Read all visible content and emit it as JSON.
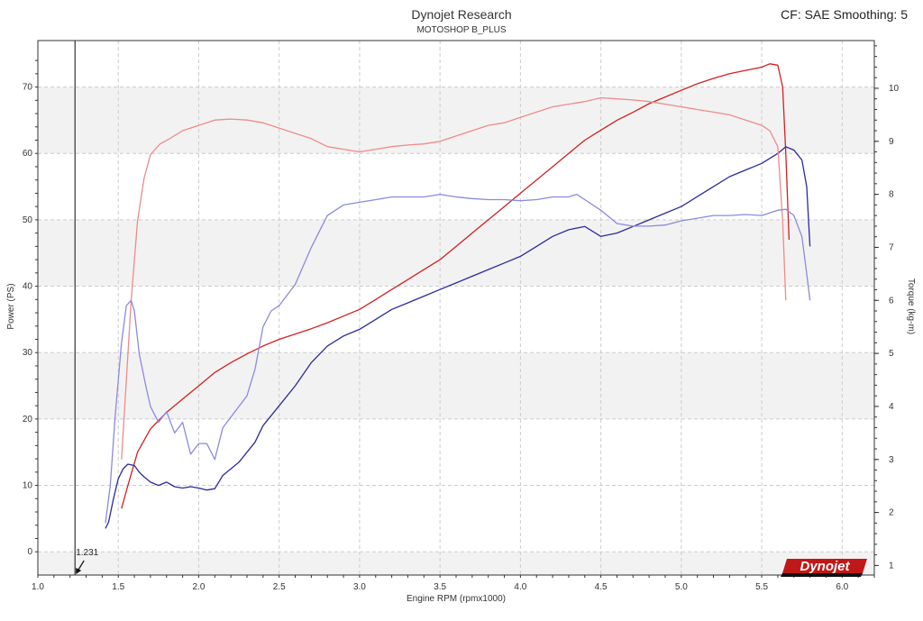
{
  "header": {
    "title": "Dynojet Research",
    "subtitle": "MOTOSHOP B_PLUS",
    "right_text": "CF: SAE Smoothing: 5"
  },
  "cursor": {
    "rpm": 1.231,
    "label": "1.231"
  },
  "logo": {
    "text": "Dynojet",
    "icon": "dynojet-logo"
  },
  "colors": {
    "power_curve": "#d42020",
    "power_curve_light": "#f08a8a",
    "torque_curve": "#2a2aa0",
    "torque_curve_light": "#8a8ae0",
    "band": "#f2f2f2",
    "grid": "#cccccc"
  },
  "chart_data": {
    "type": "line",
    "xlabel": "Engine RPM (rpmx1000)",
    "ylabel": "Power (PS)",
    "y2label": "Torque (kg-m)",
    "xlim": [
      1.0,
      6.2
    ],
    "ylim": [
      -3.5,
      77
    ],
    "y2lim": [
      0.82,
      10.9
    ],
    "x_ticks": [
      "1.0",
      "1.5",
      "2.0",
      "2.5",
      "3.0",
      "3.5",
      "4.0",
      "4.5",
      "5.0",
      "5.5",
      "6.0"
    ],
    "y_ticks": [
      "0",
      "10",
      "20",
      "30",
      "40",
      "50",
      "60",
      "70"
    ],
    "y2_ticks": [
      "1",
      "2",
      "3",
      "4",
      "5",
      "6",
      "7",
      "8",
      "9",
      "10"
    ],
    "grid": true,
    "series": [
      {
        "axis": "power",
        "style": "dark",
        "x": [
          1.52,
          1.56,
          1.62,
          1.7,
          1.8,
          1.9,
          2.0,
          2.1,
          2.2,
          2.3,
          2.4,
          2.5,
          2.6,
          2.7,
          2.8,
          2.9,
          3.0,
          3.1,
          3.2,
          3.3,
          3.4,
          3.5,
          3.6,
          3.7,
          3.8,
          3.9,
          4.0,
          4.1,
          4.2,
          4.3,
          4.4,
          4.5,
          4.6,
          4.7,
          4.8,
          4.9,
          5.0,
          5.1,
          5.2,
          5.3,
          5.4,
          5.5,
          5.55,
          5.6,
          5.63,
          5.65,
          5.67
        ],
        "y": [
          6.5,
          10,
          15,
          18.5,
          21,
          23,
          25,
          27,
          28.5,
          29.8,
          31,
          32,
          32.8,
          33.6,
          34.5,
          35.5,
          36.5,
          38,
          39.5,
          41,
          42.5,
          44,
          46,
          48,
          50,
          52,
          54,
          56,
          58,
          60,
          62,
          63.5,
          65,
          66.2,
          67.5,
          68.5,
          69.5,
          70.5,
          71.3,
          72,
          72.5,
          73,
          73.5,
          73.3,
          70,
          60,
          47
        ]
      },
      {
        "axis": "power",
        "style": "dark",
        "x": [
          1.42,
          1.44,
          1.47,
          1.5,
          1.53,
          1.56,
          1.6,
          1.63,
          1.66,
          1.7,
          1.75,
          1.8,
          1.85,
          1.9,
          1.95,
          2.0,
          2.05,
          2.1,
          2.15,
          2.2,
          2.25,
          2.3,
          2.35,
          2.4,
          2.5,
          2.6,
          2.7,
          2.8,
          2.9,
          3.0,
          3.1,
          3.2,
          3.3,
          3.4,
          3.5,
          3.6,
          3.7,
          3.8,
          3.9,
          4.0,
          4.1,
          4.2,
          4.3,
          4.4,
          4.5,
          4.6,
          4.7,
          4.8,
          4.9,
          5.0,
          5.1,
          5.2,
          5.3,
          5.4,
          5.5,
          5.6,
          5.65,
          5.7,
          5.75,
          5.78,
          5.8
        ],
        "y": [
          3.5,
          4.5,
          8,
          11,
          12.5,
          13.2,
          13,
          12,
          11.3,
          10.5,
          10,
          10.5,
          9.8,
          9.6,
          9.8,
          9.6,
          9.3,
          9.5,
          11.5,
          12.5,
          13.5,
          15,
          16.5,
          19,
          22,
          25,
          28.5,
          31,
          32.5,
          33.5,
          35,
          36.5,
          37.5,
          38.5,
          39.5,
          40.5,
          41.5,
          42.5,
          43.5,
          44.5,
          46,
          47.5,
          48.5,
          49,
          47.5,
          48,
          49,
          50,
          51,
          52,
          53.5,
          55,
          56.5,
          57.5,
          58.5,
          60,
          61,
          60.5,
          59,
          55,
          46
        ]
      },
      {
        "axis": "torque",
        "style": "light",
        "x": [
          1.52,
          1.55,
          1.58,
          1.62,
          1.66,
          1.7,
          1.76,
          1.82,
          1.9,
          2.0,
          2.1,
          2.2,
          2.3,
          2.4,
          2.5,
          2.6,
          2.7,
          2.8,
          2.9,
          3.0,
          3.1,
          3.2,
          3.3,
          3.4,
          3.5,
          3.6,
          3.7,
          3.8,
          3.9,
          4.0,
          4.1,
          4.2,
          4.3,
          4.4,
          4.5,
          4.6,
          4.7,
          4.8,
          4.9,
          5.0,
          5.1,
          5.2,
          5.3,
          5.4,
          5.5,
          5.55,
          5.6,
          5.63,
          5.65
        ],
        "y": [
          3.0,
          4.5,
          6.0,
          7.5,
          8.3,
          8.75,
          8.95,
          9.05,
          9.2,
          9.3,
          9.4,
          9.42,
          9.4,
          9.35,
          9.25,
          9.15,
          9.05,
          8.9,
          8.85,
          8.8,
          8.85,
          8.9,
          8.93,
          8.95,
          9.0,
          9.1,
          9.2,
          9.3,
          9.35,
          9.45,
          9.55,
          9.65,
          9.7,
          9.75,
          9.82,
          9.8,
          9.78,
          9.75,
          9.7,
          9.65,
          9.6,
          9.55,
          9.5,
          9.4,
          9.3,
          9.2,
          8.9,
          7.5,
          6.0
        ]
      },
      {
        "axis": "torque",
        "style": "light",
        "x": [
          1.42,
          1.45,
          1.48,
          1.52,
          1.55,
          1.58,
          1.6,
          1.63,
          1.67,
          1.7,
          1.75,
          1.8,
          1.85,
          1.9,
          1.95,
          2.0,
          2.05,
          2.1,
          2.15,
          2.2,
          2.25,
          2.3,
          2.35,
          2.4,
          2.45,
          2.5,
          2.55,
          2.6,
          2.7,
          2.8,
          2.9,
          3.0,
          3.1,
          3.2,
          3.3,
          3.4,
          3.5,
          3.6,
          3.7,
          3.8,
          3.9,
          4.0,
          4.1,
          4.2,
          4.3,
          4.35,
          4.4,
          4.5,
          4.6,
          4.7,
          4.8,
          4.9,
          5.0,
          5.1,
          5.2,
          5.3,
          5.4,
          5.5,
          5.6,
          5.65,
          5.7,
          5.75,
          5.78,
          5.8
        ],
        "y": [
          1.8,
          2.5,
          3.8,
          5.2,
          5.9,
          6.0,
          5.8,
          5.0,
          4.4,
          4.0,
          3.7,
          3.9,
          3.5,
          3.7,
          3.1,
          3.3,
          3.3,
          3.0,
          3.6,
          3.8,
          4.0,
          4.2,
          4.7,
          5.5,
          5.8,
          5.9,
          6.1,
          6.3,
          7.0,
          7.6,
          7.8,
          7.85,
          7.9,
          7.95,
          7.95,
          7.95,
          8.0,
          7.95,
          7.92,
          7.9,
          7.9,
          7.88,
          7.9,
          7.95,
          7.95,
          8.0,
          7.9,
          7.7,
          7.45,
          7.4,
          7.4,
          7.42,
          7.5,
          7.55,
          7.6,
          7.6,
          7.62,
          7.6,
          7.7,
          7.72,
          7.6,
          7.2,
          6.5,
          6.0
        ]
      }
    ]
  }
}
